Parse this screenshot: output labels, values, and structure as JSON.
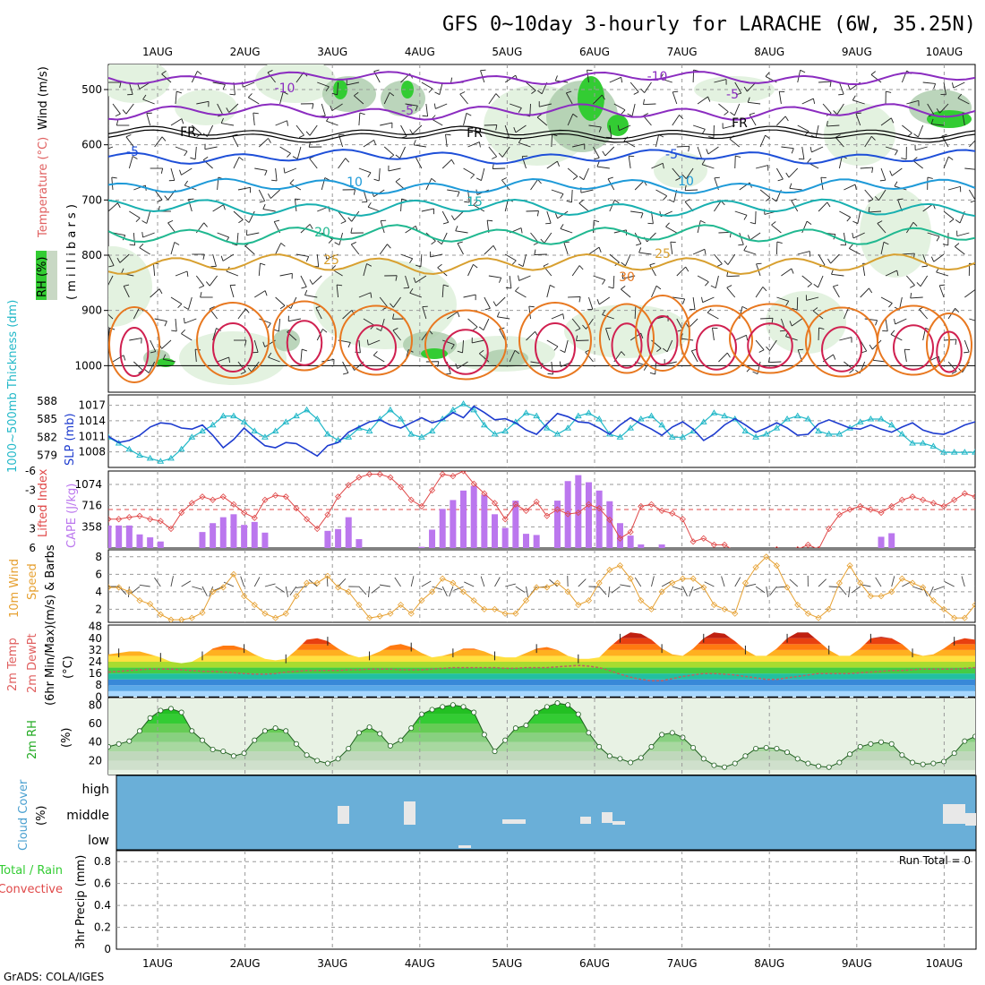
{
  "title": "GFS 0~10day 3-hourly for LARACHE (6W, 35.25N)",
  "credit": "GrADS: COLA/IGES",
  "dates": [
    "1AUG",
    "2AUG",
    "3AUG",
    "4AUG",
    "5AUG",
    "6AUG",
    "7AUG",
    "8AUG",
    "9AUG",
    "10AUG"
  ],
  "colors": {
    "rh_green": "#33cc33",
    "rh_light": "#e3f2e0",
    "slp": "#1e3ccf",
    "thickness": "#22b8c8",
    "lifted": "#e04848",
    "cape": "#bb77ee",
    "wind": "#e6a030",
    "dewpoint": "#c06060",
    "cloud": "#6aafd8",
    "cloud_patch": "#e8e8e8"
  },
  "panels": {
    "upper": {
      "ylabel_wind": "Wind (m/s)",
      "ylabel_temp": "Temperature (°C)",
      "ylabel_units": "( m i l l i b a r s )",
      "legend_rh": "RH (%)",
      "yticks": [
        "500",
        "600",
        "700",
        "800",
        "900",
        "1000"
      ],
      "contour_labels": [
        "-10",
        "-5",
        "FR",
        "-5",
        "10",
        "15",
        "20",
        "25",
        "30",
        "-10",
        "-5",
        "FR",
        "-5",
        "10",
        "25",
        "FR"
      ]
    },
    "thickness_slp": {
      "ylabel_left": "1000~500mb Thickness (dm)",
      "ylabel_right": "SLP (mb)",
      "yticks_left": [
        "588",
        "585",
        "582",
        "579"
      ],
      "yticks_right": [
        "1017",
        "1014",
        "1011",
        "1008"
      ]
    },
    "lifted_cape": {
      "ylabel_left": "Lifted Index",
      "ylabel_right": "CAPE (J/kg)",
      "yticks_left": [
        "-6",
        "-3",
        "0",
        "3",
        "6"
      ],
      "yticks_right": [
        "1074",
        "716",
        "358"
      ]
    },
    "wind10m": {
      "ylabel_1": "10m Wind",
      "ylabel_2": "Speed",
      "ylabel_3": "(m/s) & Barbs",
      "yticks": [
        "8",
        "6",
        "4",
        "2"
      ]
    },
    "temp2m": {
      "ylabel_1": "2m Temp",
      "ylabel_2": "2m DewPt",
      "ylabel_3": "(6hr Min/Max)",
      "ylabel_4": "(°C)",
      "yticks": [
        "48",
        "40",
        "32",
        "24",
        "16",
        "8",
        "0"
      ]
    },
    "rh2m": {
      "ylabel_1": "2m RH",
      "ylabel_2": "(%)",
      "yticks": [
        "80",
        "60",
        "40",
        "20"
      ]
    },
    "cloud": {
      "ylabel_1": "Cloud Cover",
      "ylabel_2": "(%)",
      "levels": [
        "high",
        "middle",
        "low"
      ]
    },
    "precip": {
      "ylabel_1": "Total / Rain",
      "ylabel_2": "Convective",
      "ylabel_3": "3hr Precip (mm)",
      "yticks": [
        "0.8",
        "0.6",
        "0.4",
        "0.2",
        "0"
      ],
      "run_total": "Run Total = 0"
    }
  },
  "chart_data": {
    "type": "meteogram",
    "location": "LARACHE (6W, 35.25N)",
    "x_dates": [
      "1AUG",
      "2AUG",
      "3AUG",
      "4AUG",
      "5AUG",
      "6AUG",
      "7AUG",
      "8AUG",
      "9AUG",
      "10AUG"
    ],
    "thickness_dm": [
      582,
      581,
      580,
      579,
      578.5,
      578,
      578.5,
      580,
      582,
      583,
      584,
      585.5,
      585.5,
      584.5,
      583,
      582,
      583,
      584.5,
      585.5,
      586.5,
      585,
      582.5,
      581.5,
      582,
      583.5,
      583,
      585,
      586.5,
      585,
      582.5,
      582,
      583,
      585,
      586.5,
      587.5,
      586.5,
      584,
      582.5,
      583,
      584.5,
      586,
      585.5,
      583.5,
      582.5,
      583.5,
      585.5,
      586,
      585,
      582.5,
      582,
      583.5,
      585,
      585.5,
      584,
      582,
      582,
      583,
      584.5,
      586,
      585.5,
      585,
      583,
      582,
      582.5,
      583.5,
      585,
      585.5,
      585,
      583,
      582.5,
      582.5,
      583.5,
      584.5,
      585,
      585,
      584,
      582.5,
      581,
      581,
      580.5,
      579.5,
      579.5,
      579.5,
      579.5
    ],
    "slp_mb": [
      1011,
      1009.8,
      1010.2,
      1011.2,
      1012.8,
      1013.6,
      1013.4,
      1012.6,
      1012.4,
      1013.2,
      1011.2,
      1008.8,
      1010.4,
      1012.6,
      1010.8,
      1009.2,
      1008.8,
      1009.8,
      1009.6,
      1008.4,
      1007.2,
      1009.2,
      1009.8,
      1011.8,
      1012.8,
      1013.8,
      1014.2,
      1013.2,
      1012.6,
      1013.6,
      1014.6,
      1013.6,
      1014.2,
      1015.6,
      1014.6,
      1016.8,
      1015.6,
      1014.2,
      1014.4,
      1013.6,
      1012.2,
      1011.4,
      1013.4,
      1015.4,
      1014.8,
      1013.8,
      1013.6,
      1012.6,
      1011.4,
      1013.2,
      1014.6,
      1013.4,
      1012.4,
      1011.2,
      1012.8,
      1013.8,
      1012.4,
      1010.2,
      1011.4,
      1013.2,
      1014.4,
      1013.2,
      1011.8,
      1012.6,
      1013.6,
      1012.6,
      1011.2,
      1011.4,
      1013.4,
      1014.2,
      1013.4,
      1012.6,
      1012.4,
      1013.2,
      1012.4,
      1011.8,
      1012.8,
      1013.6,
      1012.2,
      1011.6,
      1011.4,
      1012.2,
      1013.2,
      1013.8
    ],
    "lifted_index": [
      1.5,
      1.5,
      1.2,
      1,
      1.5,
      1.8,
      3,
      0.5,
      -1,
      -2,
      -1.5,
      -2,
      -0.8,
      0.5,
      1.3,
      -1.5,
      -2.2,
      -2,
      -0.2,
      1.5,
      3,
      0.8,
      -2,
      -3.8,
      -5,
      -5.5,
      -5.5,
      -5,
      -3.5,
      -1.5,
      -0.5,
      -3,
      -5.5,
      -5.2,
      -6,
      -4,
      -2.5,
      -1,
      1.5,
      -0.8,
      0.2,
      -1.2,
      1,
      0,
      0.7,
      0.5,
      -0.8,
      -0.2,
      1.6,
      4.5,
      3.5,
      -0.5,
      -0.8,
      0.2,
      0.6,
      1.5,
      5,
      4.5,
      5.5,
      5.5,
      6.5,
      7.5,
      6.5,
      6.5,
      6.2,
      6.5,
      6.2,
      5.5,
      6.2,
      3,
      0.8,
      0,
      -0.5,
      0,
      0.5,
      -0.5,
      -1.5,
      -2,
      -1.5,
      -1,
      -0.5,
      -1.5,
      -2.5,
      -2
    ],
    "cape_jkg": [
      380,
      380,
      380,
      230,
      180,
      110,
      0,
      0,
      0,
      270,
      420,
      520,
      570,
      390,
      440,
      260,
      0,
      0,
      0,
      0,
      0,
      290,
      320,
      520,
      150,
      0,
      0,
      0,
      0,
      0,
      20,
      310,
      660,
      810,
      970,
      1050,
      900,
      570,
      340,
      800,
      240,
      220,
      0,
      800,
      1130,
      1230,
      1110,
      970,
      790,
      420,
      210,
      60,
      0,
      60,
      0,
      0,
      0,
      0,
      0,
      0,
      0,
      0,
      0,
      0,
      0,
      0,
      0,
      0,
      0,
      0,
      0,
      0,
      0,
      0,
      190,
      250,
      0,
      0,
      0,
      0,
      0,
      0,
      0,
      0
    ],
    "wind_speed_ms": [
      4.5,
      4.5,
      4,
      3,
      2.6,
      1.4,
      0.8,
      0.8,
      1,
      1.6,
      4,
      4.5,
      6,
      3.5,
      2.5,
      1.5,
      1,
      1.5,
      3.5,
      5,
      5,
      5.8,
      4.5,
      4,
      2.5,
      1,
      1.2,
      1.5,
      2.5,
      1.5,
      3,
      4,
      5.5,
      5,
      4,
      3,
      2,
      2,
      1.5,
      1.5,
      3,
      4.5,
      4.5,
      5,
      4,
      2.5,
      3,
      5,
      6.5,
      7,
      5.5,
      3,
      2,
      4,
      5,
      5.5,
      5.5,
      4.5,
      2.5,
      2,
      1.5,
      5,
      6.8,
      8,
      7,
      4.5,
      2.5,
      1.5,
      1,
      2,
      5,
      7,
      5,
      3.5,
      3.5,
      4,
      5.5,
      5,
      4.5,
      3,
      2,
      1,
      1,
      2.5
    ],
    "temp_2m_c": [
      29,
      30,
      31,
      31,
      29,
      27,
      24,
      23,
      24,
      28,
      33,
      35,
      35,
      33,
      29,
      26,
      25,
      26,
      32,
      39,
      40,
      38,
      33,
      29,
      27,
      28,
      31,
      35,
      36,
      34,
      30,
      27,
      28,
      30,
      33,
      33,
      31,
      28,
      27,
      27,
      30,
      33,
      34,
      32,
      28,
      26,
      26,
      27,
      34,
      40,
      44,
      43,
      39,
      33,
      29,
      28,
      33,
      40,
      44,
      43,
      38,
      32,
      28,
      28,
      33,
      40,
      44,
      44,
      38,
      32,
      28,
      28,
      33,
      40,
      41,
      40,
      36,
      30,
      28,
      29,
      33,
      38,
      40,
      39
    ],
    "dewpoint_2m_c": [
      17,
      17.5,
      18,
      18.5,
      19,
      19,
      19,
      18.5,
      18,
      17.5,
      17.5,
      17,
      16.5,
      16,
      15.5,
      15.5,
      16,
      17,
      17.5,
      18,
      18,
      18,
      18,
      18.5,
      18.5,
      19,
      19,
      19,
      18.5,
      18.5,
      18.5,
      19,
      19.5,
      20,
      20,
      20,
      20,
      20,
      19.5,
      19.5,
      20,
      20,
      20,
      20.5,
      21,
      21.5,
      21,
      20,
      18,
      15.5,
      13.5,
      12,
      11,
      11,
      12.5,
      14,
      15,
      16,
      16,
      15.5,
      15,
      14,
      13,
      12,
      12,
      13,
      14,
      15,
      16,
      16,
      16,
      16,
      16.5,
      17,
      17.5,
      18,
      18,
      18.5,
      19,
      19,
      19,
      19,
      19.5,
      20
    ],
    "rh_2m_pct": [
      35,
      38,
      41,
      52,
      66,
      74,
      76,
      72,
      52,
      42,
      32,
      30,
      25,
      28,
      42,
      52,
      55,
      52,
      38,
      26,
      20,
      17,
      22,
      33,
      50,
      56,
      49,
      36,
      42,
      55,
      70,
      75,
      78,
      80,
      78,
      72,
      48,
      30,
      42,
      55,
      58,
      72,
      78,
      82,
      80,
      70,
      50,
      35,
      25,
      22,
      18,
      23,
      35,
      48,
      50,
      45,
      34,
      22,
      15,
      13,
      17,
      25,
      33,
      34,
      33,
      29,
      22,
      17,
      14,
      13,
      18,
      27,
      35,
      38,
      40,
      38,
      26,
      18,
      16,
      17,
      19,
      28,
      41,
      46
    ],
    "cloud_cover_mid_patches": [
      "3AUG",
      "3.8AUG",
      "5AUG",
      "6AUG",
      "10AUG"
    ],
    "precip_3hr_mm": 0,
    "run_total_mm": 0
  }
}
